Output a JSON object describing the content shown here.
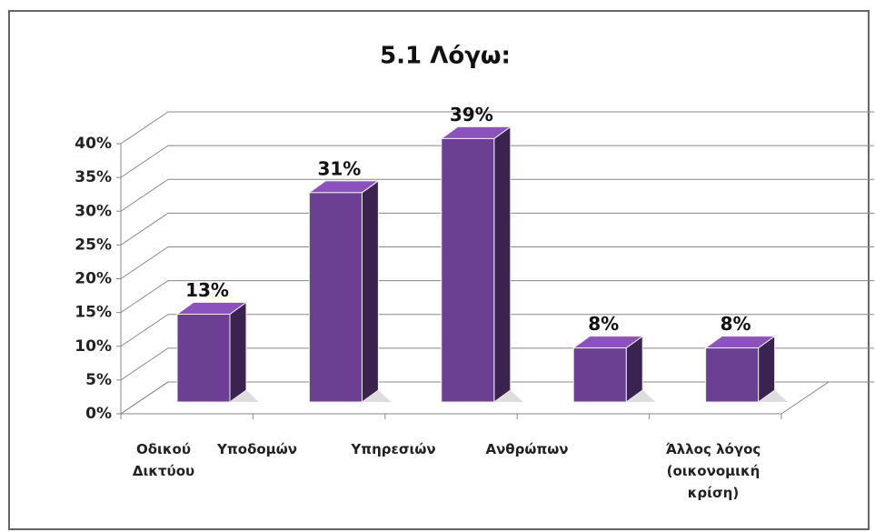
{
  "chart_data": {
    "type": "bar3d",
    "title": "5.1 Λόγω:",
    "categories": [
      "Οδικού Δικτύου",
      "Υποδομών",
      "Υπηρεσιών",
      "Ανθρώπων",
      "Άλλος λόγος (οικονομική κρίση)"
    ],
    "values": [
      13,
      31,
      39,
      8,
      8
    ],
    "value_labels": [
      "13%",
      "31%",
      "39%",
      "8%",
      "8%"
    ],
    "color": "#6b3f92",
    "ylim": [
      0,
      40
    ],
    "yticks": [
      {
        "value": 0,
        "label": "0%"
      },
      {
        "value": 5,
        "label": "5%"
      },
      {
        "value": 10,
        "label": "10%"
      },
      {
        "value": 15,
        "label": "15%"
      },
      {
        "value": 20,
        "label": "20%"
      },
      {
        "value": 25,
        "label": "25%"
      },
      {
        "value": 30,
        "label": "30%"
      },
      {
        "value": 35,
        "label": "35%"
      },
      {
        "value": 40,
        "label": "40%"
      }
    ],
    "grid": true
  }
}
